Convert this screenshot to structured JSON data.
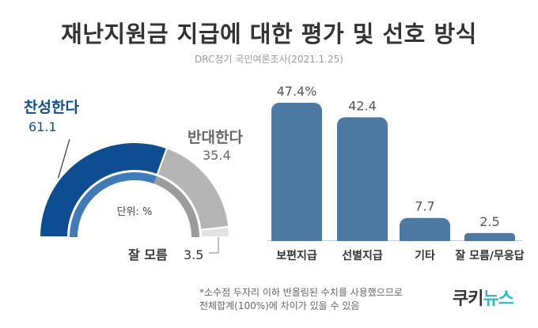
{
  "title": "재난지원금 지급에 대한 평가 및 선호 방식",
  "subtitle": "DRC정기 국민여론조사(2021.1.25)",
  "colors": {
    "navy": "#0e4d92",
    "light_gray": "#b5b5b5",
    "pale_gray": "#e2e2e2",
    "bar": "#4d7aa3",
    "inner_ring": "#3f7bb8",
    "text_dark": "#333333",
    "navy_text": "#0e4d92",
    "logo_teal": "#2fb9c4"
  },
  "footnote": {
    "line1": "*소수점 두자리 이하 반올림된 수치를 사용했으므로",
    "line2": "전체합계(100%)에 차이가 있을 수 있음"
  },
  "logo": {
    "part1": "쿠키",
    "part2": "뉴스"
  },
  "chart_data": [
    {
      "type": "pie",
      "style": "half-donut",
      "unit_label": "단위: %",
      "slices": [
        {
          "label": "찬성한다",
          "value": 61.1,
          "value_label": "61.1"
        },
        {
          "label": "반대한다",
          "value": 35.4,
          "value_label": "35.4"
        },
        {
          "label": "잘 모름",
          "value": 3.5,
          "value_label": "3.5"
        }
      ]
    },
    {
      "type": "bar",
      "categories": [
        "보편지급",
        "선별지급",
        "기타",
        "잘 모름/무응답"
      ],
      "values": [
        47.4,
        42.4,
        7.7,
        2.5
      ],
      "value_labels": [
        "47.4%",
        "42.4",
        "7.7",
        "2.5"
      ],
      "ylim": [
        0,
        47.4
      ]
    }
  ]
}
